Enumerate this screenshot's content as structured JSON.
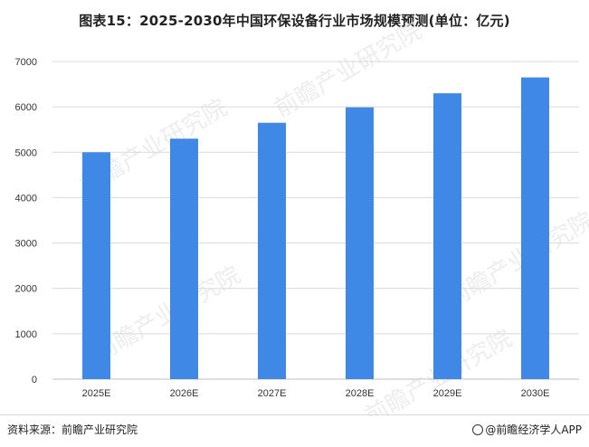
{
  "chart_data": {
    "type": "bar",
    "title": "图表15：2025-2030年中国环保设备行业市场规模预测(单位：亿元)",
    "categories": [
      "2025E",
      "2026E",
      "2027E",
      "2028E",
      "2029E",
      "2030E"
    ],
    "values": [
      5000,
      5300,
      5650,
      5990,
      6300,
      6650
    ],
    "xlabel": "",
    "ylabel": "",
    "ylim": [
      0,
      7000
    ],
    "yticks": [
      0,
      1000,
      2000,
      3000,
      4000,
      5000,
      6000,
      7000
    ],
    "grid": true,
    "legend": "none",
    "bar_color": "#3f88e6"
  },
  "footer": {
    "source": "资料来源：前瞻产业研究院",
    "brand": "@前瞻经济学人APP"
  },
  "watermark": "前瞻产业研究院"
}
